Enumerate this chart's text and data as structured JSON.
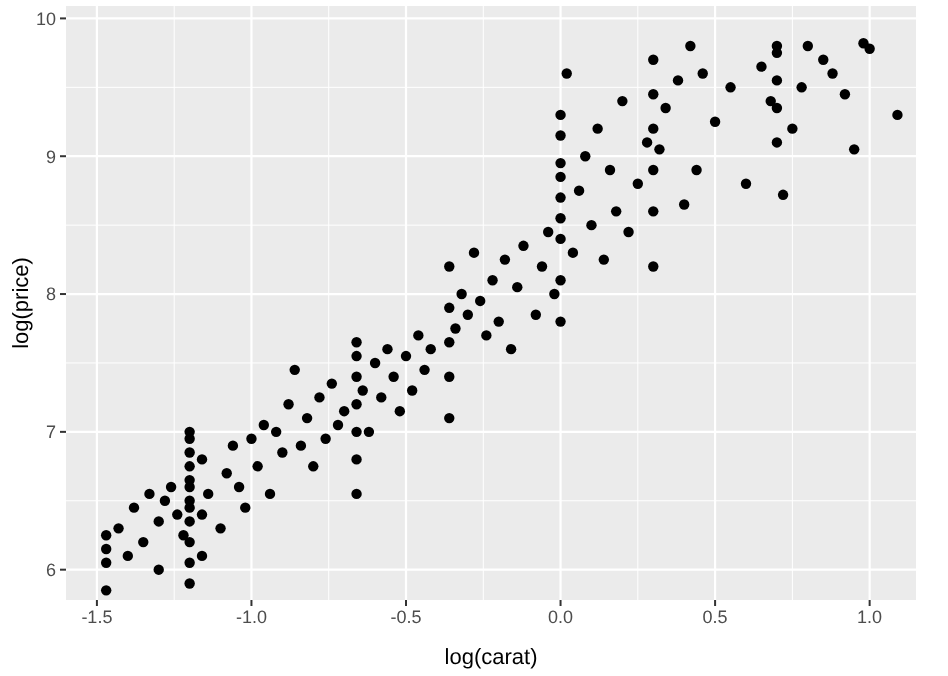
{
  "chart_data": {
    "type": "scatter",
    "xlabel": "log(carat)",
    "ylabel": "log(price)",
    "xlim": [
      -1.6,
      1.15
    ],
    "ylim": [
      5.78,
      10.09
    ],
    "xticks": [
      {
        "value": -1.5,
        "label": "-1.5"
      },
      {
        "value": -1,
        "label": "-1.0"
      },
      {
        "value": -0.5,
        "label": "-0.5"
      },
      {
        "value": 0,
        "label": "0.0"
      },
      {
        "value": 0.5,
        "label": "0.5"
      },
      {
        "value": 1,
        "label": "1.0"
      }
    ],
    "yticks": [
      6,
      7,
      8,
      9,
      10
    ],
    "grid": true,
    "marker": "circle",
    "series": [
      {
        "color": "#000000",
        "x": [
          -1.47,
          -1.47,
          -1.47,
          -1.47,
          -1.43,
          -1.4,
          -1.38,
          -1.35,
          -1.33,
          -1.3,
          -1.28,
          -1.26,
          -1.3,
          -1.24,
          -1.22,
          -1.2,
          -1.2,
          -1.2,
          -1.2,
          -1.2,
          -1.2,
          -1.2,
          -1.2,
          -1.2,
          -1.2,
          -1.2,
          -1.2,
          -1.16,
          -1.16,
          -1.16,
          -1.14,
          -1.1,
          -1.08,
          -1.06,
          -1.04,
          -1.02,
          -1.0,
          -0.98,
          -0.96,
          -0.94,
          -0.92,
          -0.9,
          -0.88,
          -0.86,
          -0.84,
          -0.82,
          -0.8,
          -0.78,
          -0.76,
          -0.74,
          -0.72,
          -0.7,
          -0.66,
          -0.66,
          -0.66,
          -0.66,
          -0.66,
          -0.66,
          -0.66,
          -0.64,
          -0.62,
          -0.6,
          -0.58,
          -0.56,
          -0.54,
          -0.52,
          -0.5,
          -0.48,
          -0.46,
          -0.44,
          -0.42,
          -0.36,
          -0.36,
          -0.36,
          -0.36,
          -0.36,
          -0.34,
          -0.32,
          -0.3,
          -0.28,
          -0.26,
          -0.24,
          -0.22,
          -0.2,
          -0.18,
          -0.16,
          -0.14,
          -0.12,
          -0.08,
          -0.06,
          -0.04,
          -0.02,
          0.0,
          0.0,
          0.0,
          0.0,
          0.0,
          0.0,
          0.0,
          0.0,
          0.0,
          0.02,
          0.04,
          0.06,
          0.08,
          0.1,
          0.12,
          0.14,
          0.16,
          0.18,
          0.2,
          0.22,
          0.25,
          0.28,
          0.3,
          0.3,
          0.3,
          0.3,
          0.3,
          0.3,
          0.32,
          0.34,
          0.38,
          0.4,
          0.42,
          0.44,
          0.46,
          0.5,
          0.55,
          0.6,
          0.65,
          0.68,
          0.7,
          0.7,
          0.7,
          0.7,
          0.7,
          0.72,
          0.75,
          0.78,
          0.85,
          0.8,
          0.88,
          0.92,
          0.95,
          0.98,
          1.0,
          1.09
        ],
        "values": [
          5.85,
          6.05,
          6.15,
          6.25,
          6.3,
          6.1,
          6.45,
          6.2,
          6.55,
          6.35,
          6.5,
          6.6,
          6.0,
          6.4,
          6.25,
          5.9,
          6.05,
          6.2,
          6.35,
          6.5,
          6.6,
          6.75,
          6.85,
          6.95,
          6.45,
          6.65,
          7.0,
          6.1,
          6.4,
          6.8,
          6.55,
          6.3,
          6.7,
          6.9,
          6.6,
          6.45,
          6.95,
          6.75,
          7.05,
          6.55,
          7.0,
          6.85,
          7.2,
          7.45,
          6.9,
          7.1,
          6.75,
          7.25,
          6.95,
          7.35,
          7.05,
          7.15,
          6.55,
          6.8,
          7.0,
          7.2,
          7.4,
          7.55,
          7.65,
          7.3,
          7.0,
          7.5,
          7.25,
          7.6,
          7.4,
          7.15,
          7.55,
          7.3,
          7.7,
          7.45,
          7.6,
          7.1,
          7.4,
          7.65,
          7.9,
          8.2,
          7.75,
          8.0,
          7.85,
          8.3,
          7.95,
          7.7,
          8.1,
          7.8,
          8.25,
          7.6,
          8.05,
          8.35,
          7.85,
          8.2,
          8.45,
          8.0,
          7.8,
          8.1,
          8.4,
          8.7,
          8.95,
          9.15,
          9.3,
          8.55,
          8.85,
          9.6,
          8.3,
          8.75,
          9.0,
          8.5,
          9.2,
          8.25,
          8.9,
          8.6,
          9.4,
          8.45,
          8.8,
          9.1,
          8.2,
          8.6,
          8.9,
          9.2,
          9.45,
          9.7,
          9.05,
          9.35,
          9.55,
          8.65,
          9.8,
          8.9,
          9.6,
          9.25,
          9.5,
          8.8,
          9.65,
          9.4,
          9.1,
          9.8,
          9.35,
          9.55,
          9.75,
          8.72,
          9.2,
          9.5,
          9.7,
          9.8,
          9.6,
          9.45,
          9.05,
          9.82,
          9.78,
          9.3
        ]
      }
    ]
  }
}
